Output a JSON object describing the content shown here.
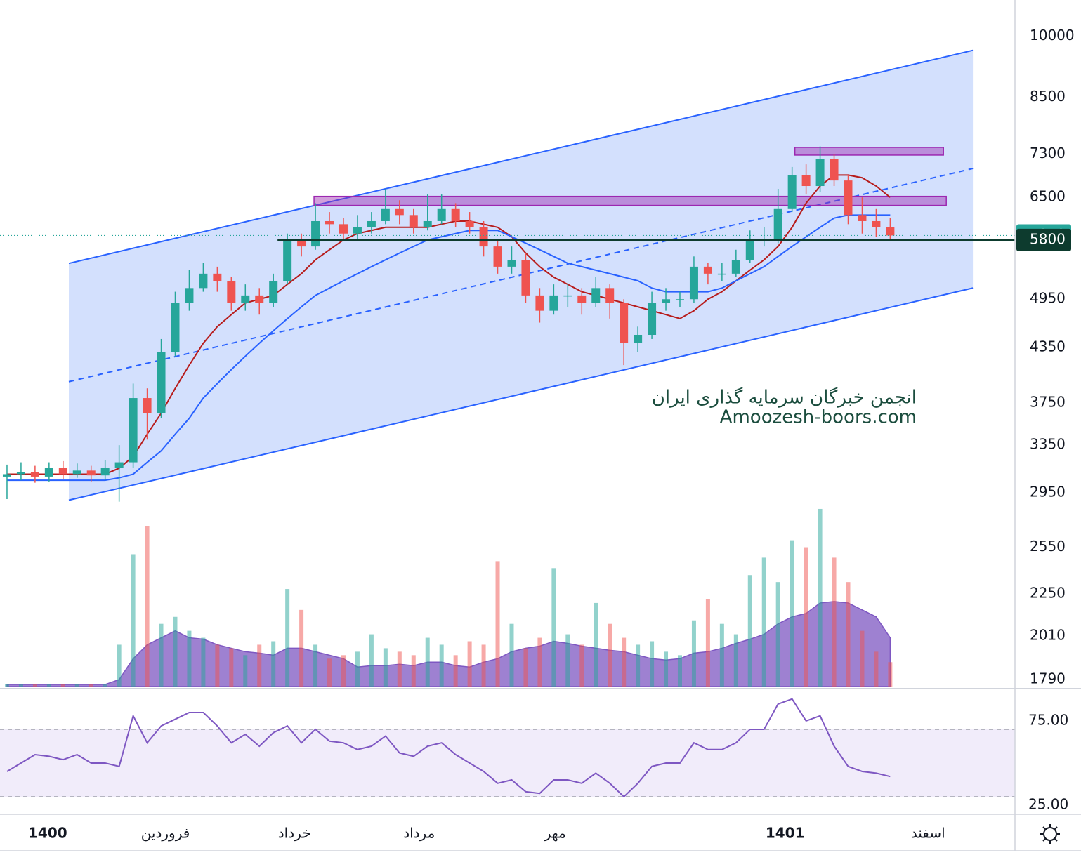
{
  "chart_data": {
    "type": "candlestick",
    "scale": "log",
    "up_color": "#26a69a",
    "down_color": "#ef5350",
    "open": [
      3080,
      3100,
      3120,
      3080,
      3150,
      3100,
      3130,
      3090,
      3150,
      3200,
      3800,
      3650,
      4300,
      4900,
      5100,
      5300,
      5200,
      4900,
      5000,
      4900,
      5200,
      5800,
      5700,
      6100,
      6050,
      5900,
      6000,
      6100,
      6300,
      6200,
      6000,
      6100,
      6300,
      6100,
      6000,
      5700,
      5400,
      5500,
      5000,
      4800,
      5000,
      5000,
      4900,
      5100,
      4900,
      4400,
      4500,
      4900,
      4950,
      4950,
      5400,
      5300,
      5300,
      5500,
      5800,
      5800,
      6300,
      6900,
      6700,
      7200,
      6800,
      6200,
      6100,
      6000
    ],
    "high": [
      3180,
      3200,
      3170,
      3200,
      3210,
      3190,
      3170,
      3220,
      3350,
      3950,
      3900,
      4450,
      5050,
      5350,
      5450,
      5400,
      5250,
      5150,
      5100,
      5300,
      5900,
      5900,
      6400,
      6250,
      6150,
      6200,
      6250,
      6650,
      6450,
      6300,
      6550,
      6550,
      6400,
      6250,
      6100,
      5800,
      5700,
      5600,
      5100,
      5150,
      5150,
      5100,
      5250,
      5150,
      4950,
      4600,
      5050,
      5100,
      5050,
      5550,
      5450,
      5450,
      5650,
      5950,
      6000,
      6650,
      7050,
      7100,
      7450,
      7300,
      6900,
      6500,
      6300,
      6150
    ],
    "low": [
      2900,
      3050,
      3030,
      3040,
      3060,
      3070,
      3040,
      3050,
      2880,
      3150,
      3400,
      3600,
      4250,
      4800,
      5050,
      5050,
      4800,
      4800,
      4750,
      4850,
      5150,
      5550,
      5650,
      5900,
      5800,
      5800,
      5900,
      6050,
      6050,
      5900,
      5950,
      6050,
      6000,
      5900,
      5550,
      5300,
      5300,
      4900,
      4650,
      4750,
      4850,
      4750,
      4850,
      4700,
      4150,
      4300,
      4450,
      4800,
      4850,
      4900,
      5150,
      5200,
      5250,
      5450,
      5700,
      5750,
      6250,
      6550,
      6600,
      6700,
      6050,
      5900,
      5850,
      5800
    ],
    "close": [
      3100,
      3120,
      3080,
      3150,
      3100,
      3130,
      3090,
      3150,
      3200,
      3800,
      3650,
      4300,
      4900,
      5100,
      5300,
      5200,
      4900,
      5000,
      4900,
      5200,
      5800,
      5700,
      6100,
      6050,
      5900,
      6000,
      6100,
      6300,
      6200,
      6000,
      6100,
      6300,
      6100,
      6000,
      5700,
      5400,
      5500,
      5000,
      4800,
      5000,
      5000,
      4900,
      5100,
      4900,
      4400,
      4500,
      4900,
      4950,
      4950,
      5400,
      5300,
      5300,
      5500,
      5800,
      5800,
      6300,
      6900,
      6700,
      7200,
      6800,
      6200,
      6100,
      6000,
      5870
    ],
    "moving_averages": [
      {
        "color": "#b71c1c",
        "values": [
          3100,
          3100,
          3100,
          3100,
          3100,
          3100,
          3100,
          3100,
          3150,
          3250,
          3450,
          3650,
          3900,
          4150,
          4400,
          4600,
          4750,
          4900,
          4950,
          5000,
          5150,
          5300,
          5500,
          5650,
          5800,
          5900,
          5950,
          6000,
          6000,
          6000,
          6000,
          6050,
          6100,
          6100,
          6050,
          6000,
          5850,
          5600,
          5400,
          5250,
          5150,
          5050,
          5000,
          4950,
          4900,
          4850,
          4800,
          4750,
          4700,
          4800,
          4950,
          5050,
          5200,
          5350,
          5500,
          5700,
          6000,
          6400,
          6700,
          6900,
          6900,
          6850,
          6700,
          6500
        ]
      },
      {
        "color": "#2962ff",
        "values": [
          3050,
          3050,
          3050,
          3050,
          3050,
          3050,
          3050,
          3050,
          3070,
          3100,
          3200,
          3300,
          3450,
          3600,
          3800,
          3950,
          4100,
          4250,
          4400,
          4550,
          4700,
          4850,
          5000,
          5100,
          5200,
          5300,
          5400,
          5500,
          5600,
          5700,
          5800,
          5850,
          5900,
          5950,
          5950,
          5950,
          5850,
          5750,
          5650,
          5550,
          5450,
          5400,
          5350,
          5300,
          5250,
          5200,
          5100,
          5050,
          5050,
          5050,
          5050,
          5100,
          5200,
          5300,
          5400,
          5550,
          5700,
          5850,
          6000,
          6150,
          6200,
          6200,
          6200,
          6200
        ]
      }
    ],
    "ylim": [
      1750,
      11020
    ],
    "yticks": [
      10000,
      8500,
      7300,
      6500,
      4950,
      4350,
      3750,
      3350,
      2950,
      2550,
      2250,
      2010,
      1790
    ],
    "xlim": [
      -0.5,
      71.9
    ],
    "xticks": [
      {
        "value": 2.9,
        "label": "1400"
      },
      {
        "value": 11.3,
        "label": "فروردین"
      },
      {
        "value": 20.5,
        "label": "خرداد"
      },
      {
        "value": 29.4,
        "label": "مرداد"
      },
      {
        "value": 39.1,
        "label": "مهر"
      },
      {
        "value": 55.5,
        "label": "1401"
      },
      {
        "value": 65.7,
        "label": "اسفند"
      }
    ],
    "channel": {
      "color": "#2962ff",
      "fill": "#d3e0fd",
      "upper": [
        [
          4.41,
          5448
        ],
        [
          68.9,
          9632
        ]
      ],
      "lower": [
        [
          4.41,
          2892
        ],
        [
          68.9,
          5101
        ]
      ],
      "middle": [
        [
          4.41,
          3970
        ],
        [
          68.9,
          7022
        ]
      ]
    },
    "zones": [
      {
        "x": [
          21.9,
          67.0
        ],
        "y": [
          6362,
          6518
        ],
        "color": "#9c27b0"
      },
      {
        "x": [
          56.2,
          66.8
        ],
        "y": [
          7278,
          7430
        ],
        "color": "#9c27b0"
      }
    ],
    "support": {
      "value": 5800,
      "x_start": 19.3,
      "color": "#0d3b2e"
    },
    "last_price": {
      "value": 5870,
      "color": "#26a69a"
    },
    "watermark": [
      "انجمن خبرگان سرمایه گذاری ایران",
      "Amoozesh-boors.com"
    ],
    "volume": [
      3,
      3,
      3,
      3,
      3,
      3,
      3,
      3,
      60,
      190,
      230,
      90,
      100,
      80,
      70,
      60,
      55,
      45,
      60,
      65,
      140,
      110,
      60,
      40,
      45,
      50,
      75,
      55,
      50,
      45,
      70,
      60,
      45,
      65,
      60,
      180,
      90,
      55,
      70,
      170,
      75,
      60,
      120,
      90,
      70,
      60,
      65,
      50,
      45,
      95,
      125,
      90,
      75,
      160,
      185,
      150,
      210,
      200,
      255,
      185,
      150,
      80,
      50,
      35
    ],
    "volume_ma": [
      3,
      3,
      3,
      3,
      3,
      3,
      3,
      3,
      10,
      40,
      60,
      70,
      80,
      70,
      68,
      60,
      55,
      50,
      48,
      45,
      55,
      55,
      50,
      45,
      40,
      28,
      30,
      30,
      32,
      30,
      35,
      35,
      30,
      28,
      35,
      40,
      50,
      55,
      58,
      65,
      62,
      58,
      55,
      52,
      50,
      45,
      40,
      38,
      40,
      48,
      50,
      55,
      62,
      68,
      75,
      90,
      100,
      105,
      120,
      122,
      120,
      110,
      100,
      70
    ],
    "volume_ma_color": "#7e57c2",
    "volume_lim": [
      0,
      260
    ],
    "rsi": [
      45,
      50,
      55,
      54,
      52,
      55,
      50,
      50,
      48,
      78,
      62,
      72,
      76,
      80,
      80,
      72,
      62,
      67,
      60,
      68,
      72,
      62,
      70,
      63,
      62,
      58,
      60,
      66,
      56,
      54,
      60,
      62,
      55,
      50,
      45,
      38,
      40,
      33,
      32,
      40,
      40,
      38,
      44,
      38,
      30,
      38,
      48,
      50,
      50,
      62,
      58,
      58,
      62,
      70,
      70,
      85,
      88,
      75,
      78,
      60,
      48,
      45,
      44,
      42
    ],
    "rsi_color": "#7e57c2",
    "rsi_lim": [
      19.6,
      93.3
    ],
    "rsi_band": [
      30,
      70
    ],
    "rsi_yticks": [
      {
        "value": 75,
        "label": "75.00"
      },
      {
        "value": 25,
        "label": "25.00"
      }
    ]
  }
}
